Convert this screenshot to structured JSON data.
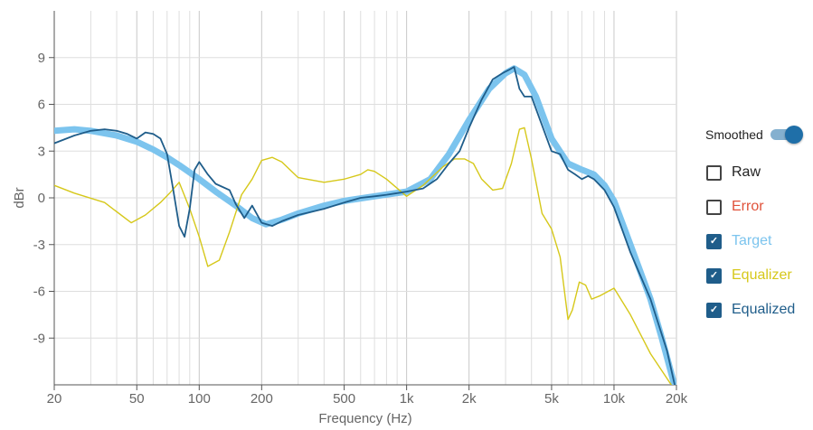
{
  "legend": {
    "smoothed_label": "Smoothed",
    "smoothed_on": true,
    "switch_color": "#1f6fa8",
    "items": [
      {
        "label": "Raw",
        "checked": false,
        "color": "#222222"
      },
      {
        "label": "Error",
        "checked": false,
        "color": "#e0523a"
      },
      {
        "label": "Target",
        "checked": true,
        "color": "#7cc4ee"
      },
      {
        "label": "Equalizer",
        "checked": true,
        "color": "#d6c81a"
      },
      {
        "label": "Equalized",
        "checked": true,
        "color": "#1f5d8a"
      }
    ]
  },
  "chart_data": {
    "type": "line",
    "xlabel": "Frequency (Hz)",
    "ylabel": "dBr",
    "xscale": "log",
    "xlim": [
      20,
      20000
    ],
    "ylim": [
      -12,
      12
    ],
    "x_ticks": [
      {
        "value": 20,
        "label": "20"
      },
      {
        "value": 50,
        "label": "50"
      },
      {
        "value": 100,
        "label": "100"
      },
      {
        "value": 200,
        "label": "200"
      },
      {
        "value": 500,
        "label": "500"
      },
      {
        "value": 1000,
        "label": "1k"
      },
      {
        "value": 2000,
        "label": "2k"
      },
      {
        "value": 5000,
        "label": "5k"
      },
      {
        "value": 10000,
        "label": "10k"
      },
      {
        "value": 20000,
        "label": "20k"
      }
    ],
    "y_ticks": [
      9,
      6,
      3,
      0,
      -3,
      -6,
      -9
    ],
    "y_tick_labels": [
      "9",
      "6",
      "3",
      "0",
      "-3",
      "-6",
      "-9"
    ],
    "grid": true,
    "series": [
      {
        "name": "Target",
        "color": "#7cc4ee",
        "x": [
          20,
          25,
          30,
          40,
          50,
          60,
          70,
          80,
          100,
          120,
          150,
          180,
          210,
          250,
          300,
          400,
          500,
          700,
          1000,
          1300,
          1600,
          2000,
          2500,
          3000,
          3300,
          3700,
          4200,
          5000,
          6000,
          7000,
          8000,
          9000,
          10000,
          12000,
          15000,
          17000,
          20000
        ],
        "y": [
          4.3,
          4.4,
          4.3,
          4.0,
          3.6,
          3.1,
          2.6,
          2.1,
          1.2,
          0.4,
          -0.5,
          -1.3,
          -1.7,
          -1.4,
          -1.0,
          -0.5,
          -0.2,
          0.1,
          0.4,
          1.2,
          2.8,
          5.0,
          7.0,
          8.0,
          8.3,
          7.9,
          6.5,
          3.8,
          2.2,
          1.8,
          1.5,
          0.8,
          -0.2,
          -3.0,
          -6.5,
          -9.0,
          -12.5
        ]
      },
      {
        "name": "Equalizer",
        "color": "#d6c81a",
        "x": [
          20,
          25,
          35,
          47,
          55,
          65,
          72,
          80,
          90,
          100,
          110,
          125,
          140,
          160,
          180,
          200,
          225,
          250,
          300,
          400,
          500,
          600,
          650,
          700,
          800,
          1000,
          1200,
          1500,
          1700,
          1900,
          2100,
          2300,
          2600,
          2900,
          3200,
          3500,
          3700,
          4000,
          4500,
          5000,
          5500,
          6000,
          6300,
          6800,
          7300,
          7800,
          8500,
          10000,
          12000,
          15000,
          20000
        ],
        "y": [
          0.8,
          0.3,
          -0.3,
          -1.6,
          -1.1,
          -0.3,
          0.3,
          1.0,
          -0.7,
          -2.5,
          -4.4,
          -4.0,
          -2.2,
          0.2,
          1.2,
          2.4,
          2.6,
          2.3,
          1.3,
          1.0,
          1.2,
          1.5,
          1.8,
          1.7,
          1.2,
          0.1,
          0.8,
          2.0,
          2.5,
          2.5,
          2.2,
          1.2,
          0.5,
          0.6,
          2.2,
          4.4,
          4.5,
          2.5,
          -1.0,
          -2.0,
          -3.8,
          -7.8,
          -7.2,
          -5.4,
          -5.6,
          -6.5,
          -6.3,
          -5.8,
          -7.5,
          -10.0,
          -12.5
        ]
      },
      {
        "name": "Equalized",
        "color": "#1f5d8a",
        "x": [
          20,
          25,
          30,
          35,
          40,
          45,
          50,
          55,
          60,
          65,
          70,
          75,
          80,
          85,
          90,
          95,
          100,
          110,
          120,
          140,
          150,
          165,
          180,
          200,
          225,
          250,
          300,
          400,
          500,
          600,
          700,
          800,
          900,
          1000,
          1200,
          1400,
          1600,
          1800,
          2000,
          2300,
          2600,
          2900,
          3100,
          3300,
          3500,
          3700,
          4000,
          4400,
          5000,
          5500,
          6000,
          6500,
          7000,
          7500,
          8000,
          9000,
          10000,
          12000,
          15000,
          18000,
          20000
        ],
        "y": [
          3.5,
          4.0,
          4.3,
          4.4,
          4.3,
          4.1,
          3.8,
          4.2,
          4.1,
          3.8,
          2.8,
          0.5,
          -1.8,
          -2.5,
          -0.7,
          1.8,
          2.3,
          1.5,
          0.9,
          0.5,
          -0.4,
          -1.3,
          -0.5,
          -1.6,
          -1.8,
          -1.5,
          -1.1,
          -0.7,
          -0.3,
          0.0,
          0.1,
          0.2,
          0.3,
          0.4,
          0.6,
          1.2,
          2.2,
          3.0,
          4.5,
          6.3,
          7.6,
          8.0,
          8.2,
          8.4,
          7.0,
          6.5,
          6.5,
          5.0,
          3.0,
          2.8,
          1.8,
          1.5,
          1.2,
          1.4,
          1.2,
          0.5,
          -0.6,
          -3.5,
          -6.5,
          -9.8,
          -12.5
        ]
      }
    ]
  }
}
